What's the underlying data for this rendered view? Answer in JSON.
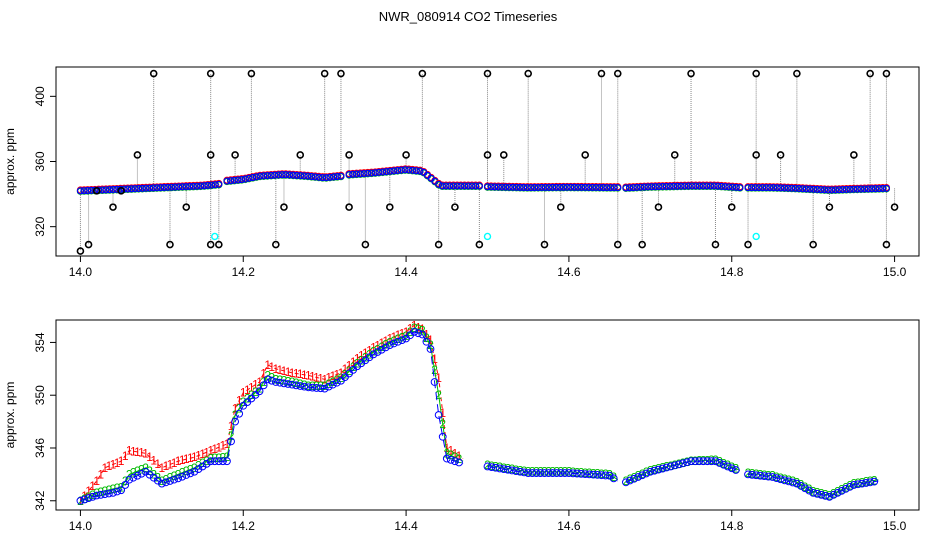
{
  "title": "NWR_080914  CO2 Timeseries",
  "colors": {
    "series1": "#ff0000",
    "series2": "#00bb00",
    "series3": "#0000ff",
    "outlier": "#000000",
    "flag": "#00ffff",
    "dotted": "#888888"
  },
  "chart_data": [
    {
      "type": "scatter",
      "ylabel": "approx. ppm",
      "xlim": [
        13.97,
        15.03
      ],
      "ylim": [
        302,
        418
      ],
      "xticks": [
        "14.0",
        "14.2",
        "14.4",
        "14.6",
        "14.8",
        "15.0"
      ],
      "xtick_values": [
        14.0,
        14.2,
        14.4,
        14.6,
        14.8,
        15.0
      ],
      "yticks": [
        "320",
        "360",
        "400"
      ],
      "ytick_values": [
        320,
        360,
        400
      ],
      "baseline_segments": [
        {
          "x": [
            14.0,
            14.05,
            14.1,
            14.15,
            14.17
          ],
          "y": [
            342,
            343,
            344,
            345,
            346
          ]
        },
        {
          "x": [
            14.18,
            14.2,
            14.22,
            14.25,
            14.28,
            14.3,
            14.32
          ],
          "y": [
            348,
            349,
            351,
            352,
            351,
            350,
            351
          ]
        },
        {
          "x": [
            14.33,
            14.36,
            14.38,
            14.4,
            14.42,
            14.43,
            14.44
          ],
          "y": [
            352,
            353,
            354,
            355,
            354,
            350,
            346
          ]
        },
        {
          "x": [
            14.44,
            14.47,
            14.49
          ],
          "y": [
            345,
            345,
            345
          ]
        },
        {
          "x": [
            14.5,
            14.55,
            14.6,
            14.65,
            14.66
          ],
          "y": [
            344.5,
            344,
            344.2,
            344,
            344
          ]
        },
        {
          "x": [
            14.67,
            14.7,
            14.75,
            14.78,
            14.81
          ],
          "y": [
            343.8,
            344.5,
            345,
            345,
            344
          ]
        },
        {
          "x": [
            14.82,
            14.85,
            14.88,
            14.9,
            14.92,
            14.95,
            14.99
          ],
          "y": [
            344,
            344,
            343.5,
            343,
            342.5,
            343,
            343.5
          ]
        }
      ],
      "outliers_x": [
        14.0,
        14.01,
        14.02,
        14.04,
        14.05,
        14.07,
        14.09,
        14.11,
        14.13,
        14.16,
        14.16,
        14.16,
        14.17,
        14.19,
        14.21,
        14.24,
        14.25,
        14.27,
        14.3,
        14.32,
        14.33,
        14.33,
        14.35,
        14.38,
        14.4,
        14.42,
        14.44,
        14.46,
        14.49,
        14.5,
        14.5,
        14.52,
        14.55,
        14.57,
        14.59,
        14.62,
        14.64,
        14.66,
        14.66,
        14.69,
        14.71,
        14.73,
        14.75,
        14.78,
        14.8,
        14.82,
        14.83,
        14.83,
        14.86,
        14.88,
        14.9,
        14.92,
        14.95,
        14.97,
        14.99,
        14.99,
        15.0
      ],
      "outliers_y": [
        305,
        309,
        342,
        332,
        342,
        364,
        414,
        309,
        332,
        309,
        364,
        414,
        309,
        364,
        414,
        309,
        332,
        364,
        414,
        414,
        364,
        332,
        309,
        332,
        364,
        414,
        309,
        332,
        309,
        364,
        414,
        364,
        414,
        309,
        332,
        364,
        414,
        309,
        414,
        309,
        332,
        364,
        414,
        309,
        332,
        309,
        364,
        414,
        364,
        414,
        309,
        332,
        364,
        414,
        309,
        414,
        332
      ],
      "flag_points": {
        "x": [
          14.165,
          14.5,
          14.83
        ],
        "y": [
          314,
          314,
          314
        ]
      }
    },
    {
      "type": "line",
      "ylabel": "approx. ppm",
      "xlim": [
        13.97,
        15.03
      ],
      "ylim": [
        341.3,
        355.7
      ],
      "xticks": [
        "14.0",
        "14.2",
        "14.4",
        "14.6",
        "14.8",
        "15.0"
      ],
      "xtick_values": [
        14.0,
        14.2,
        14.4,
        14.6,
        14.8,
        15.0
      ],
      "yticks": [
        "342",
        "346",
        "350",
        "354"
      ],
      "ytick_values": [
        342,
        346,
        350,
        354
      ],
      "series": [
        {
          "name": "1",
          "x": [
            14.0,
            14.02,
            14.03,
            14.05,
            14.06,
            14.08,
            14.1,
            14.12,
            14.14,
            14.16,
            14.18,
            14.19,
            14.2,
            14.22,
            14.23,
            14.24,
            14.26,
            14.28,
            14.3,
            14.32,
            14.34,
            14.36,
            14.38,
            14.4,
            14.41,
            14.42,
            14.43,
            14.44,
            14.45,
            14.47
          ],
          "y": [
            342.0,
            343.5,
            344.5,
            345.0,
            345.8,
            345.6,
            344.5,
            345.0,
            345.3,
            345.8,
            346.3,
            349.0,
            350.2,
            351.0,
            352.3,
            352.0,
            351.7,
            351.5,
            351.2,
            351.7,
            352.8,
            353.6,
            354.3,
            354.8,
            355.3,
            355.0,
            354.2,
            351.3,
            346.0,
            345.2
          ]
        },
        {
          "name": "2",
          "x": [
            14.0,
            14.02,
            14.04,
            14.05,
            14.06,
            14.08,
            14.1,
            14.12,
            14.14,
            14.16,
            14.18,
            14.19,
            14.2,
            14.22,
            14.23,
            14.24,
            14.26,
            14.28,
            14.3,
            14.32,
            14.34,
            14.36,
            14.38,
            14.4,
            14.41,
            14.42,
            14.43,
            14.44,
            14.45,
            14.47,
            14.5,
            14.55,
            14.6,
            14.65,
            14.66,
            14.67,
            14.7,
            14.75,
            14.78,
            14.81,
            14.82,
            14.85,
            14.88,
            14.9,
            14.92,
            14.95,
            14.98
          ],
          "y": [
            342.0,
            342.6,
            342.9,
            343.0,
            344.0,
            344.5,
            343.5,
            344.0,
            344.5,
            345.2,
            345.3,
            348.5,
            349.5,
            350.5,
            351.5,
            351.2,
            351.0,
            350.7,
            350.7,
            351.3,
            352.4,
            353.3,
            354.0,
            354.5,
            355.1,
            354.9,
            353.8,
            350.0,
            345.6,
            345.0,
            344.7,
            344.2,
            344.2,
            344.0,
            343.6,
            343.5,
            344.3,
            345.0,
            345.1,
            344.3,
            344.1,
            343.9,
            343.4,
            342.7,
            342.4,
            343.3,
            343.6
          ]
        },
        {
          "name": "3",
          "x": [
            14.0,
            14.02,
            14.04,
            14.05,
            14.06,
            14.08,
            14.1,
            14.12,
            14.14,
            14.16,
            14.18,
            14.19,
            14.2,
            14.22,
            14.23,
            14.24,
            14.26,
            14.28,
            14.3,
            14.32,
            14.34,
            14.36,
            14.38,
            14.4,
            14.41,
            14.42,
            14.43,
            14.44,
            14.45,
            14.47,
            14.5,
            14.55,
            14.6,
            14.65,
            14.66,
            14.67,
            14.7,
            14.75,
            14.78,
            14.81,
            14.82,
            14.85,
            14.88,
            14.9,
            14.92,
            14.95,
            14.98
          ],
          "y": [
            342.0,
            342.4,
            342.6,
            342.8,
            343.6,
            344.2,
            343.3,
            343.7,
            344.2,
            345.0,
            345.0,
            348.0,
            349.2,
            350.3,
            351.2,
            351.0,
            350.8,
            350.6,
            350.5,
            351.1,
            352.2,
            353.1,
            353.8,
            354.3,
            354.8,
            354.6,
            353.5,
            348.5,
            345.2,
            344.8,
            344.6,
            344.1,
            344.1,
            343.9,
            343.5,
            343.4,
            344.2,
            345.0,
            345.0,
            344.2,
            344.0,
            343.8,
            343.3,
            342.6,
            342.3,
            343.2,
            343.5
          ]
        }
      ]
    }
  ]
}
